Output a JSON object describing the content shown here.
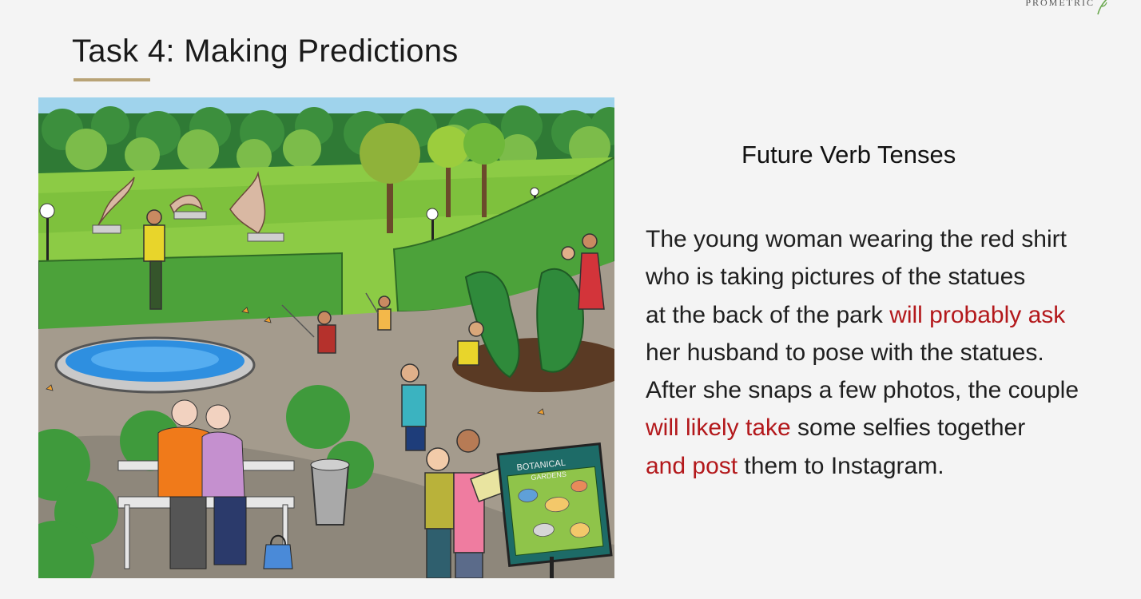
{
  "brand": {
    "logo_text": "PROMETRIC"
  },
  "slide": {
    "title": "Task 4: Making Predictions",
    "subtitle": "Future Verb Tenses",
    "colors": {
      "accent_rule": "#b8a376",
      "highlight": "#b3181b"
    }
  },
  "paragraph": {
    "line1": "The young woman wearing the red shirt",
    "line2": "who is taking pictures of the statues",
    "line3_pre": "at the back of the park ",
    "line3_hl": "will probably ask",
    "line4": "her husband to pose with the statues.",
    "line5": "After she snaps a few photos, the couple",
    "line6_hl": "will likely take",
    "line6_post": " some selfies together",
    "line7_hl": "and post",
    "line7_post": " them to Instagram."
  },
  "illustration": {
    "map_sign_line1": "BOTANICAL",
    "map_sign_line2": "GARDENS"
  }
}
